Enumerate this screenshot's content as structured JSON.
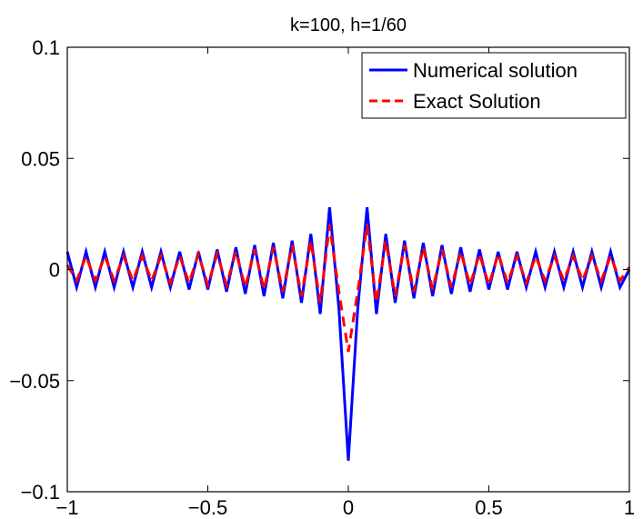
{
  "chart_data": {
    "type": "line",
    "title": "k=100, h=1/60",
    "xlabel": "",
    "ylabel": "",
    "xlim": [
      -1,
      1
    ],
    "ylim": [
      -0.1,
      0.1
    ],
    "xticks": [
      -1,
      -0.5,
      0,
      0.5,
      1
    ],
    "xtick_labels": [
      "−1",
      "−0.5",
      "0",
      "0.5",
      "1"
    ],
    "yticks": [
      -0.1,
      -0.05,
      0,
      0.05,
      0.1
    ],
    "ytick_labels": [
      "−0.1",
      "−0.05",
      "0",
      "0.05",
      "0.1"
    ],
    "grid": false,
    "legend_position": "top-right",
    "series": [
      {
        "name": "Numerical solution",
        "color": "#0000ff",
        "style": "solid",
        "x": [
          -1,
          -0.9667,
          -0.9333,
          -0.9,
          -0.8667,
          -0.8333,
          -0.8,
          -0.7667,
          -0.7333,
          -0.7,
          -0.6667,
          -0.6333,
          -0.6,
          -0.5667,
          -0.5333,
          -0.5,
          -0.4667,
          -0.4333,
          -0.4,
          -0.3667,
          -0.3333,
          -0.3,
          -0.2667,
          -0.2333,
          -0.2,
          -0.1667,
          -0.1333,
          -0.1,
          -0.0667,
          -0.0333,
          0,
          0.0333,
          0.0667,
          0.1,
          0.1333,
          0.1667,
          0.2,
          0.2333,
          0.2667,
          0.3,
          0.3333,
          0.3667,
          0.4,
          0.4333,
          0.4667,
          0.5,
          0.5333,
          0.5667,
          0.6,
          0.6333,
          0.6667,
          0.7,
          0.7333,
          0.7667,
          0.8,
          0.8333,
          0.8667,
          0.9,
          0.9333,
          0.9667,
          1
        ],
        "y": [
          0.008,
          -0.008,
          0.008,
          -0.008,
          0.008,
          -0.008,
          0.008,
          -0.008,
          0.008,
          -0.008,
          0.008,
          -0.008,
          0.008,
          -0.009,
          0.008,
          -0.009,
          0.009,
          -0.01,
          0.01,
          -0.011,
          0.011,
          -0.012,
          0.012,
          -0.013,
          0.013,
          -0.015,
          0.016,
          -0.02,
          0.028,
          -0.018,
          -0.086,
          -0.018,
          0.028,
          -0.02,
          0.016,
          -0.015,
          0.013,
          -0.013,
          0.012,
          -0.012,
          0.011,
          -0.011,
          0.01,
          -0.01,
          0.009,
          -0.009,
          0.008,
          -0.009,
          0.008,
          -0.008,
          0.008,
          -0.008,
          0.008,
          -0.008,
          0.008,
          -0.008,
          0.008,
          -0.008,
          0.008,
          -0.008,
          0.0
        ]
      },
      {
        "name": "Exact Solution",
        "color": "#ff0000",
        "style": "dashed",
        "x": [
          -1,
          -0.9667,
          -0.9333,
          -0.9,
          -0.8667,
          -0.8333,
          -0.8,
          -0.7667,
          -0.7333,
          -0.7,
          -0.6667,
          -0.6333,
          -0.6,
          -0.5667,
          -0.5333,
          -0.5,
          -0.4667,
          -0.4333,
          -0.4,
          -0.3667,
          -0.3333,
          -0.3,
          -0.2667,
          -0.2333,
          -0.2,
          -0.1667,
          -0.1333,
          -0.1,
          -0.0667,
          -0.0333,
          0,
          0.0333,
          0.0667,
          0.1,
          0.1333,
          0.1667,
          0.2,
          0.2333,
          0.2667,
          0.3,
          0.3333,
          0.3667,
          0.4,
          0.4333,
          0.4667,
          0.5,
          0.5333,
          0.5667,
          0.6,
          0.6333,
          0.6667,
          0.7,
          0.7333,
          0.7667,
          0.8,
          0.8333,
          0.8667,
          0.9,
          0.9333,
          0.9667,
          1
        ],
        "y": [
          0.002,
          -0.005,
          0.006,
          -0.005,
          0.006,
          -0.005,
          0.006,
          -0.005,
          0.006,
          -0.005,
          0.006,
          -0.006,
          0.006,
          -0.006,
          0.007,
          -0.007,
          0.007,
          -0.007,
          0.008,
          -0.008,
          0.009,
          -0.009,
          0.01,
          -0.01,
          0.011,
          -0.012,
          0.013,
          -0.015,
          0.02,
          -0.01,
          -0.037,
          -0.01,
          0.02,
          -0.015,
          0.013,
          -0.012,
          0.011,
          -0.01,
          0.01,
          -0.009,
          0.009,
          -0.008,
          0.008,
          -0.007,
          0.007,
          -0.007,
          0.007,
          -0.006,
          0.006,
          -0.006,
          0.006,
          -0.005,
          0.006,
          -0.005,
          0.006,
          -0.005,
          0.006,
          -0.005,
          0.006,
          -0.005,
          0.001
        ]
      }
    ]
  }
}
